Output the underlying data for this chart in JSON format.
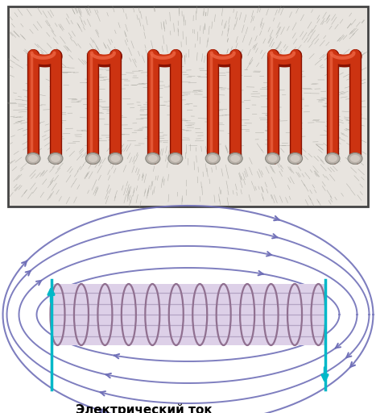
{
  "bg_color": "#ffffff",
  "photo_bg": "#e8e4e0",
  "field_line_color": "#7070b8",
  "current_arrow_color": "#00b8c8",
  "text_label": "Электрический ток",
  "text_color": "#000000",
  "n_red_coils": 6,
  "coil_color_main": "#cc3311",
  "coil_color_highlight": "#ee6644",
  "solenoid_body_color": "#ddd0e8",
  "solenoid_line_color": "#b0a0c0",
  "loop_edge_color": "#907090"
}
